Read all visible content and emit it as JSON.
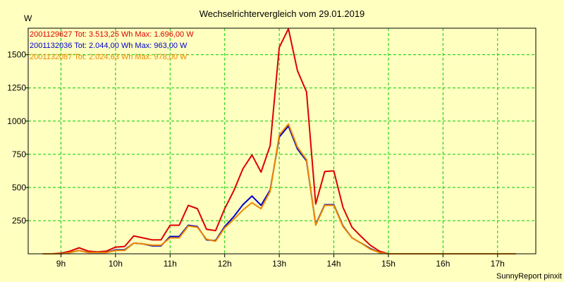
{
  "chart_data": {
    "type": "line",
    "title": "Wechselrichtervergleich vom 29.01.2019",
    "ylabel": "W",
    "footer": "SunnyReport pinxit",
    "xlim": [
      8.4,
      17.7
    ],
    "ylim": [
      0,
      1700
    ],
    "x_ticks": [
      9,
      10,
      11,
      12,
      13,
      14,
      15,
      16,
      17
    ],
    "x_tick_labels": [
      "9h",
      "10h",
      "11h",
      "12h",
      "13h",
      "14h",
      "15h",
      "16h",
      "17h"
    ],
    "y_ticks": [
      250,
      500,
      750,
      1000,
      1250,
      1500
    ],
    "y_tick_labels": [
      "250",
      "500",
      "750",
      "1000",
      "1250",
      "1500"
    ],
    "grid": true,
    "legend_position": "top-left",
    "x": [
      8.667,
      8.833,
      9.0,
      9.167,
      9.333,
      9.5,
      9.667,
      9.833,
      10.0,
      10.167,
      10.333,
      10.5,
      10.667,
      10.833,
      11.0,
      11.167,
      11.333,
      11.5,
      11.667,
      11.833,
      12.0,
      12.167,
      12.333,
      12.5,
      12.667,
      12.833,
      13.0,
      13.167,
      13.333,
      13.5,
      13.667,
      13.833,
      14.0,
      14.167,
      14.333,
      14.5,
      14.667,
      14.833,
      15.0,
      15.167,
      15.333,
      15.5,
      15.667,
      15.833,
      16.0,
      16.167,
      16.333,
      16.5,
      16.667,
      16.833,
      17.0,
      17.167,
      17.333
    ],
    "series": [
      {
        "name": "2001129627 Tot: 3.513,25 Wh Max: 1.696,00 W",
        "color": "#dd0000",
        "values": [
          0,
          0,
          5,
          20,
          45,
          20,
          15,
          20,
          50,
          55,
          135,
          120,
          105,
          105,
          215,
          215,
          365,
          340,
          185,
          175,
          340,
          475,
          640,
          745,
          615,
          815,
          1555,
          1696,
          1380,
          1220,
          375,
          620,
          625,
          350,
          200,
          130,
          65,
          20,
          0,
          0,
          0,
          0,
          0,
          0,
          0,
          0,
          0,
          0,
          0,
          0,
          0,
          0,
          0
        ]
      },
      {
        "name": "2001132036 Tot: 2.044,00 Wh Max: 963,00 W",
        "color": "#0000cc",
        "values": [
          0,
          0,
          0,
          10,
          25,
          10,
          10,
          10,
          30,
          30,
          80,
          75,
          60,
          60,
          130,
          130,
          215,
          205,
          105,
          100,
          205,
          280,
          370,
          435,
          365,
          480,
          880,
          963,
          790,
          700,
          220,
          370,
          370,
          210,
          120,
          80,
          40,
          10,
          0,
          0,
          0,
          0,
          0,
          0,
          0,
          0,
          0,
          0,
          0,
          0,
          0,
          0,
          0
        ]
      },
      {
        "name": "2001132087 Tot: 2.024,63 Wh Max: 978,00 W",
        "color": "#ee8800",
        "values": [
          0,
          0,
          0,
          10,
          25,
          10,
          10,
          10,
          25,
          25,
          80,
          75,
          65,
          65,
          120,
          120,
          210,
          200,
          110,
          95,
          195,
          260,
          330,
          385,
          340,
          470,
          895,
          978,
          805,
          710,
          215,
          365,
          365,
          205,
          120,
          80,
          35,
          10,
          0,
          0,
          0,
          0,
          0,
          0,
          0,
          0,
          0,
          0,
          0,
          0,
          0,
          0,
          0
        ]
      }
    ]
  }
}
